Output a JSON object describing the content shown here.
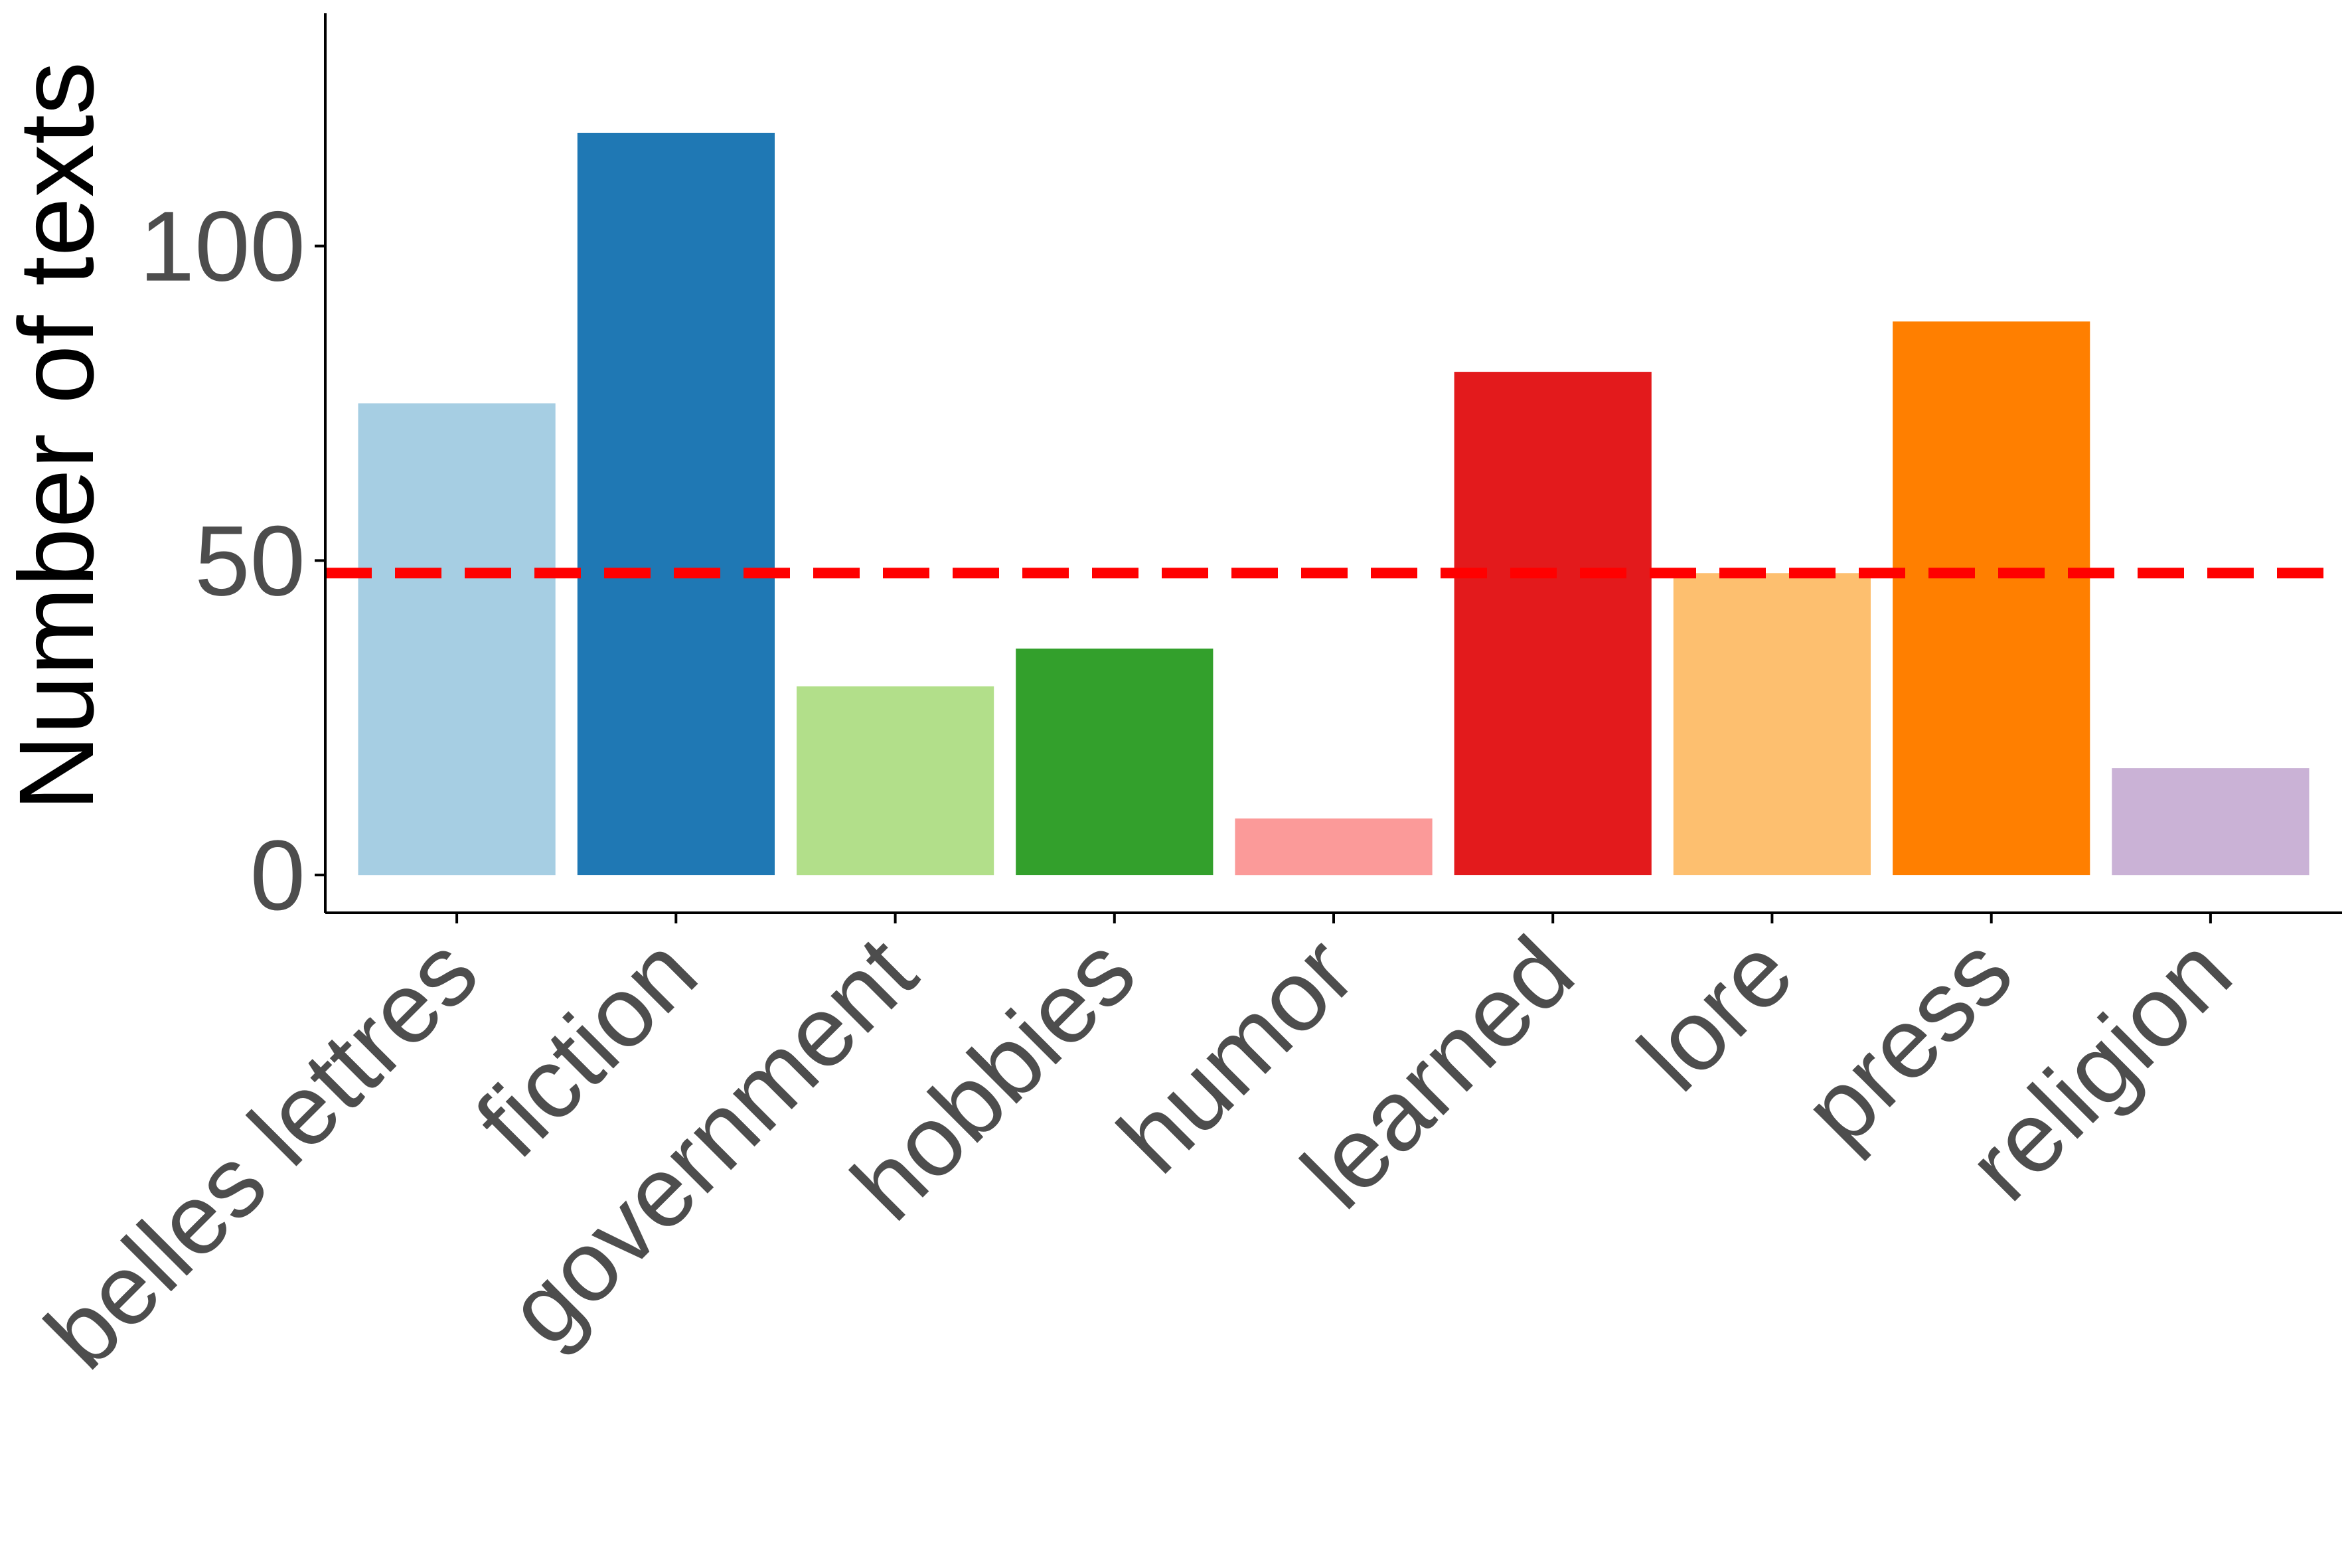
{
  "chart_data": {
    "type": "bar",
    "categories": [
      "belles lettres",
      "fiction",
      "government",
      "hobbies",
      "humor",
      "learned",
      "lore",
      "press",
      "religion"
    ],
    "values": [
      75,
      118,
      30,
      36,
      9,
      80,
      48,
      88,
      17
    ],
    "colors": [
      "#a6cee3",
      "#1f78b4",
      "#b2df8a",
      "#33a02c",
      "#fb9a99",
      "#e31a1c",
      "#fdbf6f",
      "#ff7f00",
      "#cab2d6"
    ],
    "ylabel": "Number of texts",
    "xlabel": "",
    "ylim": [
      -6,
      137
    ],
    "yticks": [
      0,
      50,
      100
    ],
    "reference_line": {
      "value": 48,
      "style": "dashed",
      "color": "#ff0000"
    },
    "grid": false,
    "legend": "none"
  }
}
